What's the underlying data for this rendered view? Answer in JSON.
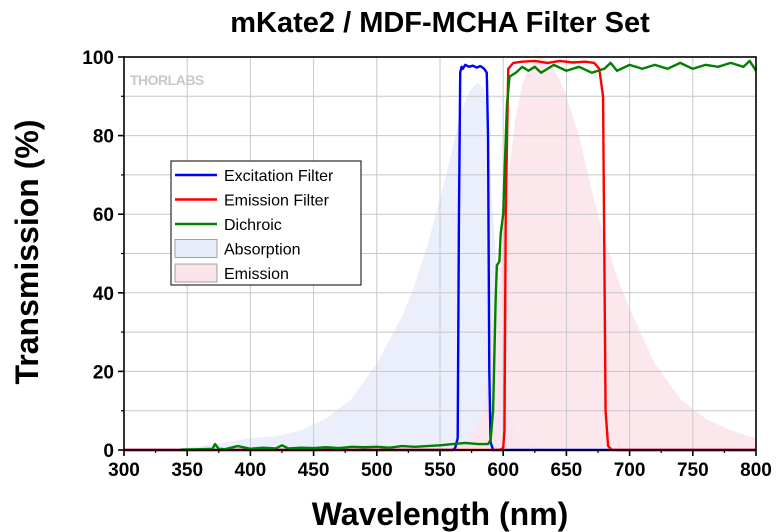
{
  "chart_data": {
    "type": "line",
    "title": "mKate2 / MDF-MCHA Filter Set",
    "xlabel": "Wavelength (nm)",
    "ylabel": "Transmission (%)",
    "xlim": [
      300,
      800
    ],
    "ylim": [
      0,
      100
    ],
    "xticks": [
      300,
      350,
      400,
      450,
      500,
      550,
      600,
      650,
      700,
      750,
      800
    ],
    "yticks": [
      0,
      20,
      40,
      60,
      80,
      100
    ],
    "grid": true,
    "legend_position": "left-center",
    "watermark": "THORLABS",
    "series": [
      {
        "name": "Excitation Filter",
        "kind": "line",
        "color": "#0000ff",
        "x": [
          300,
          560,
          562,
          564,
          565,
          566,
          567,
          568,
          570,
          573,
          576,
          579,
          582,
          585,
          587,
          588,
          589,
          590,
          592,
          595,
          800
        ],
        "y": [
          0,
          0,
          0.5,
          3,
          60,
          96,
          97.5,
          97,
          98,
          97.5,
          97.8,
          97.3,
          97.7,
          97,
          96,
          80,
          20,
          2,
          0,
          0,
          0
        ]
      },
      {
        "name": "Emission Filter",
        "kind": "line",
        "color": "#ff0000",
        "x": [
          300,
          597,
          600,
          601,
          602,
          604,
          608,
          615,
          625,
          635,
          645,
          655,
          665,
          672,
          676,
          679,
          680,
          681,
          683,
          686,
          800
        ],
        "y": [
          0,
          0,
          0.5,
          5,
          60,
          97,
          98.5,
          98.8,
          99,
          98.5,
          99,
          98.6,
          98.8,
          98.5,
          97,
          90,
          50,
          10,
          1,
          0,
          0
        ]
      },
      {
        "name": "Dichroic",
        "kind": "line",
        "color": "#008000",
        "x": [
          345,
          360,
          370,
          372,
          375,
          380,
          390,
          400,
          410,
          420,
          425,
          430,
          440,
          450,
          460,
          470,
          480,
          490,
          500,
          510,
          520,
          530,
          540,
          550,
          560,
          570,
          580,
          585,
          588,
          590,
          592,
          594,
          595,
          597,
          598,
          600,
          601,
          603,
          605,
          610,
          615,
          620,
          625,
          630,
          640,
          650,
          660,
          670,
          680,
          685,
          690,
          700,
          710,
          720,
          730,
          740,
          750,
          760,
          770,
          780,
          790,
          795,
          800
        ],
        "y": [
          0.1,
          0.2,
          0.3,
          1.5,
          0.3,
          0.2,
          1,
          0.3,
          0.6,
          0.4,
          1.2,
          0.4,
          0.6,
          0.5,
          0.7,
          0.5,
          0.8,
          0.7,
          0.8,
          0.6,
          1,
          0.8,
          1,
          1.2,
          1.5,
          1.8,
          1.5,
          1.5,
          1.5,
          2.5,
          10,
          38,
          47,
          48,
          55,
          60,
          70,
          88,
          95,
          96,
          97.5,
          96.5,
          97.5,
          96,
          98,
          96.5,
          97.5,
          96,
          97,
          98.5,
          96.5,
          98,
          97,
          98,
          97,
          98.5,
          97,
          98,
          97.5,
          98.5,
          97.5,
          99,
          96.5
        ]
      },
      {
        "name": "Absorption",
        "kind": "area",
        "color": "#e6ecfa",
        "x": [
          345,
          360,
          380,
          400,
          420,
          440,
          460,
          480,
          500,
          510,
          520,
          530,
          540,
          545,
          550,
          555,
          560,
          565,
          570,
          575,
          580,
          585,
          588,
          590,
          595,
          600,
          605,
          610,
          615,
          620,
          630,
          640
        ],
        "y": [
          0.5,
          1,
          2,
          3,
          3.5,
          5,
          8,
          13,
          22,
          28,
          34,
          42,
          52,
          58,
          64,
          70,
          77,
          84,
          89,
          92,
          93.5,
          92,
          85,
          70,
          45,
          22,
          10,
          5,
          3,
          2,
          1,
          0
        ]
      },
      {
        "name": "Emission",
        "kind": "area",
        "color": "#fbe3ea",
        "x": [
          560,
          570,
          580,
          585,
          590,
          595,
          600,
          605,
          610,
          615,
          620,
          625,
          630,
          635,
          640,
          645,
          650,
          660,
          670,
          680,
          690,
          700,
          720,
          740,
          760,
          780,
          800
        ],
        "y": [
          0,
          2,
          6,
          10,
          20,
          35,
          55,
          72,
          85,
          93,
          97,
          99,
          100,
          99,
          97,
          94,
          90,
          80,
          66,
          54,
          44,
          36,
          22,
          13,
          8,
          5,
          3
        ]
      }
    ]
  }
}
